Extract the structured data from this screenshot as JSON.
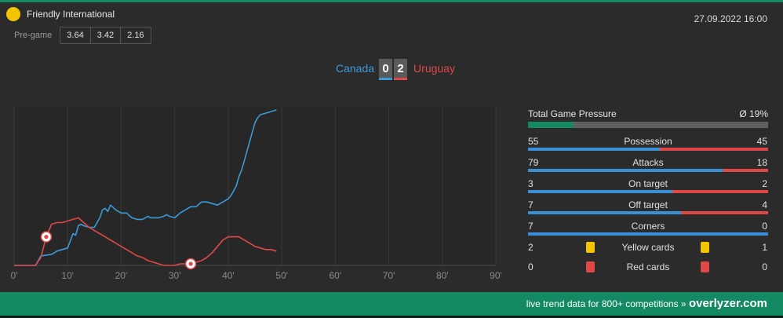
{
  "header": {
    "competition": "Friendly International",
    "datetime": "27.09.2022 16:00",
    "pregame_label": "Pre-game",
    "odds": [
      "3.64",
      "3.42",
      "2.16"
    ]
  },
  "match": {
    "home_team": "Canada",
    "away_team": "Uruguay",
    "home_score": "0",
    "away_score": "2",
    "home_color": "#3b9ad9",
    "away_color": "#e04848"
  },
  "chart_data": {
    "type": "line",
    "x_ticks": [
      "0'",
      "10'",
      "20'",
      "30'",
      "40'",
      "50'",
      "60'",
      "70'",
      "80'",
      "90'"
    ],
    "xlim": [
      0,
      90
    ],
    "ylim": [
      0,
      100
    ],
    "goal_minutes": [
      6,
      33
    ],
    "series": [
      {
        "name": "Canada",
        "color": "#3b9ad9",
        "points": [
          [
            0,
            0
          ],
          [
            4,
            0
          ],
          [
            5,
            6
          ],
          [
            7,
            7
          ],
          [
            8,
            9
          ],
          [
            9,
            10
          ],
          [
            10,
            11
          ],
          [
            11,
            20
          ],
          [
            11.5,
            19
          ],
          [
            12,
            25
          ],
          [
            12.5,
            26
          ],
          [
            13,
            25
          ],
          [
            14,
            24
          ],
          [
            15,
            24
          ],
          [
            16,
            30
          ],
          [
            16.5,
            35
          ],
          [
            17,
            36
          ],
          [
            17.5,
            34
          ],
          [
            18,
            38
          ],
          [
            19,
            35
          ],
          [
            20,
            33
          ],
          [
            21,
            33
          ],
          [
            22,
            30
          ],
          [
            23,
            29
          ],
          [
            24,
            29
          ],
          [
            25,
            31
          ],
          [
            25.5,
            30
          ],
          [
            26,
            30
          ],
          [
            27,
            30
          ],
          [
            28,
            31
          ],
          [
            28.5,
            32
          ],
          [
            29,
            31
          ],
          [
            30,
            30
          ],
          [
            31,
            33
          ],
          [
            32,
            35
          ],
          [
            33,
            37
          ],
          [
            34,
            37
          ],
          [
            35,
            40
          ],
          [
            36,
            40
          ],
          [
            37,
            39
          ],
          [
            38,
            38
          ],
          [
            39,
            40
          ],
          [
            40,
            42
          ],
          [
            40.5,
            44
          ],
          [
            41,
            47
          ],
          [
            41.5,
            50
          ],
          [
            42,
            56
          ],
          [
            42.5,
            60
          ],
          [
            43,
            66
          ],
          [
            43.5,
            72
          ],
          [
            44,
            78
          ],
          [
            44.5,
            84
          ],
          [
            45,
            90
          ],
          [
            45.5,
            93
          ],
          [
            46,
            95
          ],
          [
            47,
            96
          ],
          [
            48,
            97
          ],
          [
            49,
            98
          ]
        ]
      },
      {
        "name": "Uruguay",
        "color": "#e04848",
        "points": [
          [
            0,
            0
          ],
          [
            4,
            0
          ],
          [
            5,
            5
          ],
          [
            6,
            18
          ],
          [
            7,
            26
          ],
          [
            8,
            27
          ],
          [
            9,
            27
          ],
          [
            10,
            28
          ],
          [
            11,
            29
          ],
          [
            12,
            30
          ],
          [
            13,
            27
          ],
          [
            14,
            24
          ],
          [
            15,
            22
          ],
          [
            16,
            20
          ],
          [
            17,
            18
          ],
          [
            18,
            16
          ],
          [
            19,
            14
          ],
          [
            20,
            12
          ],
          [
            21,
            10
          ],
          [
            22,
            8
          ],
          [
            23,
            6
          ],
          [
            24,
            5
          ],
          [
            25,
            3
          ],
          [
            26,
            2
          ],
          [
            27,
            1
          ],
          [
            28,
            0
          ],
          [
            29,
            0
          ],
          [
            30,
            0
          ],
          [
            31,
            1
          ],
          [
            32,
            1
          ],
          [
            33,
            1
          ],
          [
            34,
            2
          ],
          [
            35,
            3
          ],
          [
            36,
            5
          ],
          [
            37,
            8
          ],
          [
            38,
            12
          ],
          [
            39,
            16
          ],
          [
            40,
            18
          ],
          [
            41,
            18
          ],
          [
            42,
            18
          ],
          [
            43,
            16
          ],
          [
            44,
            14
          ],
          [
            45,
            12
          ],
          [
            46,
            11
          ],
          [
            47,
            10
          ],
          [
            48,
            10
          ],
          [
            49,
            9
          ]
        ]
      }
    ]
  },
  "stats": {
    "pressure_label": "Total Game Pressure",
    "pressure_value": "Ø 19%",
    "pressure_fraction": 0.19,
    "rows": [
      {
        "label": "Possession",
        "home": "55",
        "away": "45",
        "home_fraction": 0.55
      },
      {
        "label": "Attacks",
        "home": "79",
        "away": "18",
        "home_fraction": 0.81
      },
      {
        "label": "On target",
        "home": "3",
        "away": "2",
        "home_fraction": 0.6
      },
      {
        "label": "Off target",
        "home": "7",
        "away": "4",
        "home_fraction": 0.636
      },
      {
        "label": "Corners",
        "home": "7",
        "away": "0",
        "home_fraction": 1.0
      }
    ],
    "cards": [
      {
        "label": "Yellow cards",
        "home": "2",
        "away": "1",
        "color": "#f2c500"
      },
      {
        "label": "Red cards",
        "home": "0",
        "away": "0",
        "color": "#e04848"
      }
    ]
  },
  "footer": {
    "text": "live trend data for 800+ competitions »",
    "brand": "overlyzer.com",
    "color": "#138a63"
  }
}
